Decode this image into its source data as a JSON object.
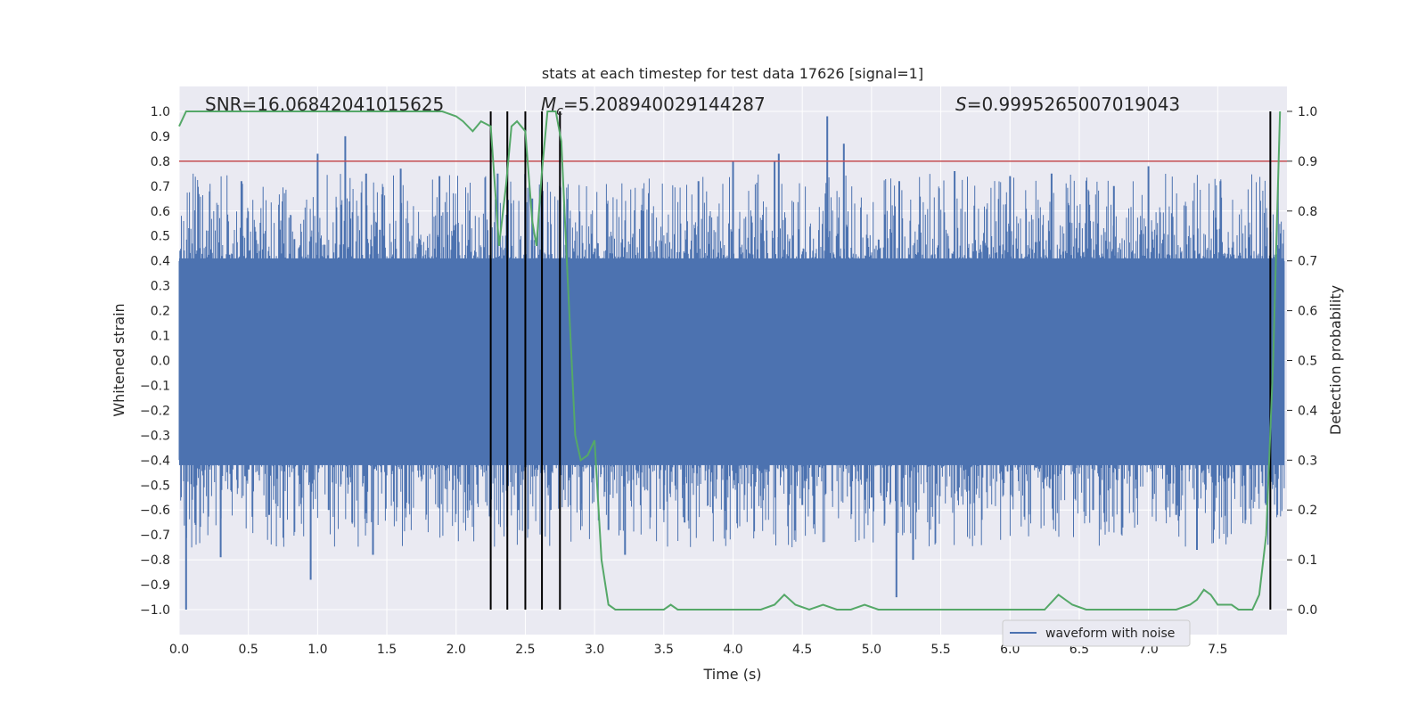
{
  "chart_data": {
    "type": "line",
    "title": "stats at each timestep for test data 17626 [signal=1]",
    "xlabel": "Time (s)",
    "ylabel": "Whitened strain",
    "y2label": "Detection probability",
    "xlim": [
      0.0,
      8.0
    ],
    "ylim": [
      -1.1,
      1.1
    ],
    "y2lim": [
      -0.05,
      1.05
    ],
    "x_ticks": [
      0.0,
      0.5,
      1.0,
      1.5,
      2.0,
      2.5,
      3.0,
      3.5,
      4.0,
      4.5,
      5.0,
      5.5,
      6.0,
      6.5,
      7.0,
      7.5
    ],
    "x_tick_labels": [
      "0.0",
      "0.5",
      "1.0",
      "1.5",
      "2.0",
      "2.5",
      "3.0",
      "3.5",
      "4.0",
      "4.5",
      "5.0",
      "5.5",
      "6.0",
      "6.5",
      "7.0",
      "7.5"
    ],
    "y_ticks": [
      -1.0,
      -0.9,
      -0.8,
      -0.7,
      -0.6,
      -0.5,
      -0.4,
      -0.3,
      -0.2,
      -0.1,
      0.0,
      0.1,
      0.2,
      0.3,
      0.4,
      0.5,
      0.6,
      0.7,
      0.8,
      0.9,
      1.0
    ],
    "y_tick_labels": [
      "−1.0",
      "−0.9",
      "−0.8",
      "−0.7",
      "−0.6",
      "−0.5",
      "−0.4",
      "−0.3",
      "−0.2",
      "−0.1",
      "0.0",
      "0.1",
      "0.2",
      "0.3",
      "0.4",
      "0.5",
      "0.6",
      "0.7",
      "0.8",
      "0.9",
      "1.0"
    ],
    "y2_ticks": [
      0.0,
      0.1,
      0.2,
      0.3,
      0.4,
      0.5,
      0.6,
      0.7,
      0.8,
      0.9,
      1.0
    ],
    "y2_tick_labels": [
      "0.0",
      "0.1",
      "0.2",
      "0.3",
      "0.4",
      "0.5",
      "0.6",
      "0.7",
      "0.8",
      "0.9",
      "1.0"
    ],
    "grid": true,
    "legend": {
      "placement": "lower-right",
      "entries": [
        "waveform with noise"
      ]
    },
    "annotations": {
      "snr": "SNR=16.06842041015625",
      "mc_symbol": "M",
      "mc_sub": "c",
      "mc_value": "=5.208940029144287",
      "s_symbol": "S",
      "s_value": "=0.9995265007019043"
    },
    "waveform": {
      "name": "waveform with noise",
      "color": "#4c72b0",
      "t_start": 0.0,
      "t_end": 7.98,
      "envelope_hi": 0.41,
      "envelope_lo": -0.42,
      "peaks": [
        [
          0.05,
          -1.0
        ],
        [
          0.12,
          -0.66
        ],
        [
          0.3,
          -0.79
        ],
        [
          0.45,
          0.72
        ],
        [
          0.65,
          -0.62
        ],
        [
          0.95,
          -0.88
        ],
        [
          1.0,
          0.83
        ],
        [
          1.08,
          -0.6
        ],
        [
          1.2,
          0.9
        ],
        [
          1.25,
          -0.65
        ],
        [
          1.35,
          0.75
        ],
        [
          1.4,
          -0.78
        ],
        [
          1.6,
          0.77
        ],
        [
          1.88,
          0.74
        ],
        [
          2.25,
          -0.63
        ],
        [
          2.3,
          0.75
        ],
        [
          2.45,
          -0.6
        ],
        [
          2.55,
          0.65
        ],
        [
          2.68,
          -0.6
        ],
        [
          2.75,
          0.7
        ],
        [
          2.9,
          -0.6
        ],
        [
          3.1,
          -0.68
        ],
        [
          3.22,
          -0.78
        ],
        [
          3.35,
          0.6
        ],
        [
          3.5,
          -0.6
        ],
        [
          3.65,
          -0.65
        ],
        [
          3.75,
          0.72
        ],
        [
          3.95,
          -0.68
        ],
        [
          4.0,
          0.8
        ],
        [
          4.3,
          0.8
        ],
        [
          4.33,
          0.83
        ],
        [
          4.5,
          -0.58
        ],
        [
          4.68,
          0.98
        ],
        [
          4.8,
          0.87
        ],
        [
          5.0,
          -0.55
        ],
        [
          5.18,
          -0.95
        ],
        [
          5.2,
          0.72
        ],
        [
          5.3,
          -0.8
        ],
        [
          5.6,
          0.76
        ],
        [
          6.0,
          0.74
        ],
        [
          6.3,
          0.75
        ],
        [
          6.6,
          -0.6
        ],
        [
          6.75,
          0.7
        ],
        [
          7.0,
          0.78
        ],
        [
          7.2,
          -0.62
        ],
        [
          7.35,
          -0.76
        ],
        [
          7.52,
          0.72
        ],
        [
          7.7,
          -0.64
        ],
        [
          7.85,
          -0.58
        ],
        [
          7.93,
          -0.62
        ]
      ]
    },
    "detection_probability": {
      "color": "#55a868",
      "x": [
        0.0,
        0.05,
        0.1,
        0.2,
        0.5,
        1.0,
        1.5,
        1.9,
        2.0,
        2.05,
        2.12,
        2.18,
        2.25,
        2.28,
        2.31,
        2.36,
        2.4,
        2.44,
        2.5,
        2.55,
        2.58,
        2.62,
        2.66,
        2.72,
        2.76,
        2.8,
        2.86,
        2.9,
        2.95,
        3.0,
        3.05,
        3.1,
        3.15,
        3.2,
        3.3,
        3.4,
        3.45,
        3.5,
        3.55,
        3.6,
        3.7,
        4.0,
        4.1,
        4.2,
        4.3,
        4.37,
        4.45,
        4.55,
        4.65,
        4.75,
        4.85,
        4.95,
        5.05,
        5.2,
        5.5,
        5.7,
        5.9,
        6.0,
        6.1,
        6.25,
        6.35,
        6.45,
        6.55,
        6.7,
        7.0,
        7.2,
        7.3,
        7.35,
        7.4,
        7.45,
        7.5,
        7.55,
        7.6,
        7.65,
        7.7,
        7.75,
        7.8,
        7.85,
        7.9,
        7.95
      ],
      "y": [
        0.97,
        1.0,
        1.0,
        1.0,
        1.0,
        1.0,
        1.0,
        1.0,
        0.99,
        0.98,
        0.96,
        0.98,
        0.97,
        0.85,
        0.73,
        0.85,
        0.97,
        0.98,
        0.96,
        0.78,
        0.73,
        0.88,
        1.0,
        1.0,
        0.94,
        0.7,
        0.35,
        0.3,
        0.31,
        0.34,
        0.1,
        0.01,
        0.0,
        0.0,
        0.0,
        0.0,
        0.0,
        0.0,
        0.01,
        0.0,
        0.0,
        0.0,
        0.0,
        0.0,
        0.01,
        0.03,
        0.01,
        0.0,
        0.01,
        0.0,
        0.0,
        0.01,
        0.0,
        0.0,
        0.0,
        0.0,
        0.0,
        0.0,
        0.0,
        0.0,
        0.03,
        0.01,
        0.0,
        0.0,
        0.0,
        0.0,
        0.01,
        0.02,
        0.04,
        0.03,
        0.01,
        0.01,
        0.01,
        0.0,
        0.0,
        0.0,
        0.03,
        0.15,
        0.5,
        1.0
      ]
    },
    "threshold": {
      "y2": 0.9,
      "color": "#c44e52"
    },
    "trigger_lines": {
      "x": [
        2.25,
        2.37,
        2.5,
        2.62,
        2.75,
        7.88
      ],
      "color": "#000000"
    }
  }
}
